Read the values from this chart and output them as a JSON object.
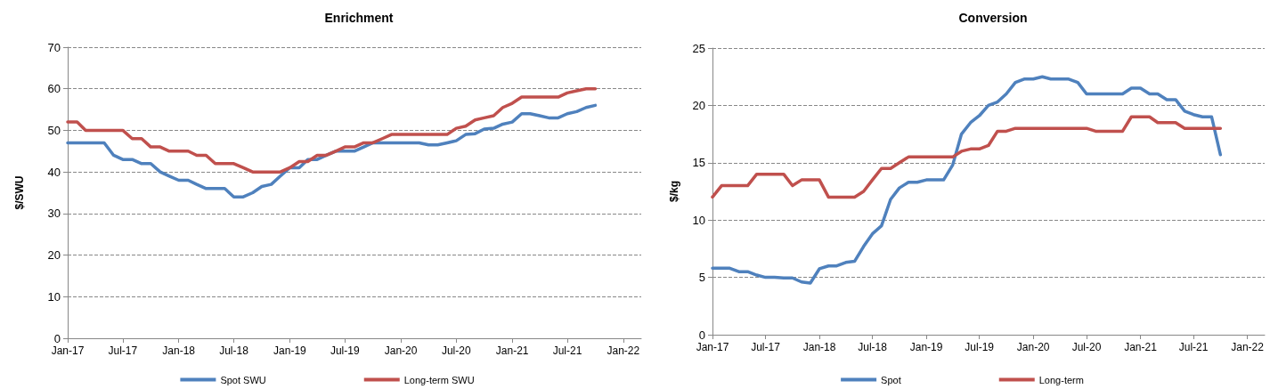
{
  "chart_data": [
    {
      "type": "line",
      "title": "Enrichment",
      "ylabel": "$/SWU",
      "x": [
        "2017-01",
        "2017-02",
        "2017-03",
        "2017-04",
        "2017-05",
        "2017-06",
        "2017-07",
        "2017-08",
        "2017-09",
        "2017-10",
        "2017-11",
        "2017-12",
        "2018-01",
        "2018-02",
        "2018-03",
        "2018-04",
        "2018-05",
        "2018-06",
        "2018-07",
        "2018-08",
        "2018-09",
        "2018-10",
        "2018-11",
        "2018-12",
        "2019-01",
        "2019-02",
        "2019-03",
        "2019-04",
        "2019-05",
        "2019-06",
        "2019-07",
        "2019-08",
        "2019-09",
        "2019-10",
        "2019-11",
        "2019-12",
        "2020-01",
        "2020-02",
        "2020-03",
        "2020-04",
        "2020-05",
        "2020-06",
        "2020-07",
        "2020-08",
        "2020-09",
        "2020-10",
        "2020-11",
        "2020-12",
        "2021-01",
        "2021-02",
        "2021-03",
        "2021-04",
        "2021-05",
        "2021-06",
        "2021-07",
        "2021-08",
        "2021-09",
        "2021-10"
      ],
      "series": [
        {
          "name": "Spot SWU",
          "color": "#4f81bd",
          "values": [
            47,
            47,
            47,
            47,
            47,
            44,
            43,
            43,
            42,
            42,
            40,
            39,
            38,
            38,
            37,
            36,
            36,
            36,
            34,
            34,
            35,
            36.5,
            37,
            39,
            41,
            41,
            43,
            43,
            44,
            45,
            45,
            45,
            46,
            47,
            47,
            47,
            47,
            47,
            47,
            46.5,
            46.5,
            47,
            47.5,
            49,
            49.2,
            50.3,
            50.5,
            51.5,
            52,
            54,
            54,
            53.5,
            53,
            53,
            54,
            54.5,
            55.5,
            56
          ]
        },
        {
          "name": "Long-term SWU",
          "color": "#c0504d",
          "values": [
            52,
            52,
            50,
            50,
            50,
            50,
            50,
            48,
            48,
            46,
            46,
            45,
            45,
            45,
            44,
            44,
            42,
            42,
            42,
            41,
            40,
            40,
            40,
            40,
            41,
            42.5,
            42.5,
            44,
            44,
            45,
            46,
            46,
            47,
            47,
            48,
            49,
            49,
            49,
            49,
            49,
            49,
            49,
            50.5,
            51,
            52.5,
            53,
            53.5,
            55.5,
            56.5,
            58,
            58,
            58,
            58,
            58,
            59,
            59.5,
            60,
            60
          ]
        }
      ],
      "xlim": [
        "2017-01",
        "2022-03"
      ],
      "xticks": [
        {
          "value": "2017-01",
          "label": "Jan-17"
        },
        {
          "value": "2017-07",
          "label": "Jul-17"
        },
        {
          "value": "2018-01",
          "label": "Jan-18"
        },
        {
          "value": "2018-07",
          "label": "Jul-18"
        },
        {
          "value": "2019-01",
          "label": "Jan-19"
        },
        {
          "value": "2019-07",
          "label": "Jul-19"
        },
        {
          "value": "2020-01",
          "label": "Jan-20"
        },
        {
          "value": "2020-07",
          "label": "Jul-20"
        },
        {
          "value": "2021-01",
          "label": "Jan-21"
        },
        {
          "value": "2021-07",
          "label": "Jul-21"
        },
        {
          "value": "2022-01",
          "label": "Jan-22"
        }
      ],
      "ylim": [
        0,
        70
      ],
      "yticks": [
        0,
        10,
        20,
        30,
        40,
        50,
        60,
        70
      ],
      "grid": "y",
      "legend": "bottom",
      "marker": "none",
      "line_style": "solid"
    },
    {
      "type": "line",
      "title": "Conversion",
      "ylabel": "$/kg",
      "x": [
        "2017-01",
        "2017-02",
        "2017-03",
        "2017-04",
        "2017-05",
        "2017-06",
        "2017-07",
        "2017-08",
        "2017-09",
        "2017-10",
        "2017-11",
        "2017-12",
        "2018-01",
        "2018-02",
        "2018-03",
        "2018-04",
        "2018-05",
        "2018-06",
        "2018-07",
        "2018-08",
        "2018-09",
        "2018-10",
        "2018-11",
        "2018-12",
        "2019-01",
        "2019-02",
        "2019-03",
        "2019-04",
        "2019-05",
        "2019-06",
        "2019-07",
        "2019-08",
        "2019-09",
        "2019-10",
        "2019-11",
        "2019-12",
        "2020-01",
        "2020-02",
        "2020-03",
        "2020-04",
        "2020-05",
        "2020-06",
        "2020-07",
        "2020-08",
        "2020-09",
        "2020-10",
        "2020-11",
        "2020-12",
        "2021-01",
        "2021-02",
        "2021-03",
        "2021-04",
        "2021-05",
        "2021-06",
        "2021-07",
        "2021-08",
        "2021-09",
        "2021-10"
      ],
      "series": [
        {
          "name": "Spot",
          "color": "#4f81bd",
          "values": [
            5.8,
            5.8,
            5.8,
            5.5,
            5.5,
            5.2,
            5,
            5,
            4.95,
            4.95,
            4.6,
            4.5,
            5.75,
            6,
            6,
            6.3,
            6.4,
            7.7,
            8.8,
            9.5,
            11.8,
            12.8,
            13.3,
            13.3,
            13.5,
            13.5,
            13.5,
            14.8,
            17.5,
            18.5,
            19.1,
            20,
            20.3,
            21,
            22,
            22.3,
            22.3,
            22.5,
            22.3,
            22.3,
            22.3,
            22,
            21,
            21,
            21,
            21,
            21,
            21.5,
            21.5,
            21,
            21,
            20.5,
            20.5,
            19.5,
            19.2,
            19,
            19,
            15.7
          ]
        },
        {
          "name": "Long-term",
          "color": "#c0504d",
          "values": [
            12,
            13,
            13,
            13,
            13,
            14,
            14,
            14,
            14,
            13,
            13.5,
            13.5,
            13.5,
            12,
            12,
            12,
            12,
            12.5,
            13.5,
            14.5,
            14.5,
            15,
            15.5,
            15.5,
            15.5,
            15.5,
            15.5,
            15.5,
            16,
            16.2,
            16.2,
            16.5,
            17.75,
            17.75,
            18,
            18,
            18,
            18,
            18,
            18,
            18,
            18,
            18,
            17.75,
            17.75,
            17.75,
            17.75,
            19,
            19,
            19,
            18.5,
            18.5,
            18.5,
            18,
            18,
            18,
            18,
            18
          ]
        }
      ],
      "xlim": [
        "2017-01",
        "2022-03"
      ],
      "xticks": [
        {
          "value": "2017-01",
          "label": "Jan-17"
        },
        {
          "value": "2017-07",
          "label": "Jul-17"
        },
        {
          "value": "2018-01",
          "label": "Jan-18"
        },
        {
          "value": "2018-07",
          "label": "Jul-18"
        },
        {
          "value": "2019-01",
          "label": "Jan-19"
        },
        {
          "value": "2019-07",
          "label": "Jul-19"
        },
        {
          "value": "2020-01",
          "label": "Jan-20"
        },
        {
          "value": "2020-07",
          "label": "Jul-20"
        },
        {
          "value": "2021-01",
          "label": "Jan-21"
        },
        {
          "value": "2021-07",
          "label": "Jul-21"
        },
        {
          "value": "2022-01",
          "label": "Jan-22"
        }
      ],
      "ylim": [
        0,
        25
      ],
      "yticks": [
        0,
        5,
        10,
        15,
        20,
        25
      ],
      "grid": "y",
      "legend": "bottom",
      "marker": "none",
      "line_style": "solid"
    }
  ]
}
